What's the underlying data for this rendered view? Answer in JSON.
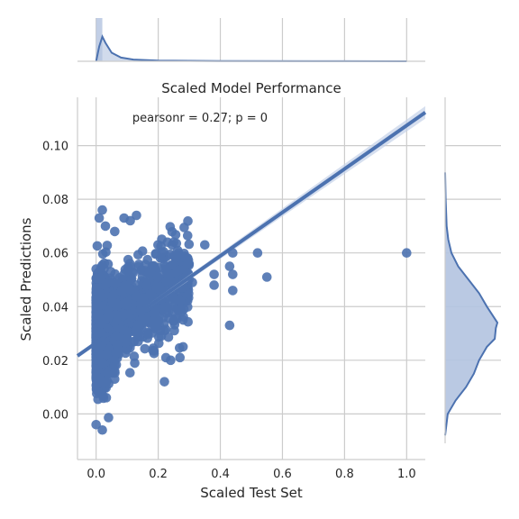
{
  "chart_data": {
    "type": "scatter",
    "title": "Scaled Model Performance",
    "xlabel": "Scaled Test Set",
    "ylabel": "Scaled Predictions",
    "annotation": "pearsonr = 0.27; p = 0",
    "xlim": [
      -0.06,
      1.06
    ],
    "ylim": [
      -0.017,
      0.118
    ],
    "x_ticks": [
      0.0,
      0.2,
      0.4,
      0.6,
      0.8,
      1.0
    ],
    "x_tick_labels": [
      "0.0",
      "0.2",
      "0.4",
      "0.6",
      "0.8",
      "1.0"
    ],
    "y_ticks": [
      0.0,
      0.02,
      0.04,
      0.06,
      0.08,
      0.1
    ],
    "y_tick_labels": [
      "0.00",
      "0.02",
      "0.04",
      "0.06",
      "0.08",
      "0.10"
    ],
    "grid": true,
    "colors": {
      "points": "#4c72b0",
      "line": "#4c72b0",
      "band": "#c5d1e8",
      "grid": "#cccccc",
      "kde_fill": "#b3c3e0"
    },
    "regression": {
      "intercept": 0.0265,
      "slope": 0.081
    },
    "outliers": [
      {
        "x": 1.0,
        "y": 0.06
      },
      {
        "x": 0.52,
        "y": 0.06
      },
      {
        "x": 0.55,
        "y": 0.051
      },
      {
        "x": 0.44,
        "y": 0.06
      },
      {
        "x": 0.43,
        "y": 0.055
      },
      {
        "x": 0.44,
        "y": 0.052
      },
      {
        "x": 0.44,
        "y": 0.046
      },
      {
        "x": 0.43,
        "y": 0.033
      },
      {
        "x": 0.38,
        "y": 0.052
      },
      {
        "x": 0.38,
        "y": 0.048
      },
      {
        "x": 0.35,
        "y": 0.063
      },
      {
        "x": 0.31,
        "y": 0.049
      },
      {
        "x": 0.27,
        "y": 0.039
      },
      {
        "x": 0.28,
        "y": 0.035
      },
      {
        "x": 0.28,
        "y": 0.025
      },
      {
        "x": 0.27,
        "y": 0.021
      },
      {
        "x": 0.23,
        "y": 0.04
      },
      {
        "x": 0.22,
        "y": 0.031
      },
      {
        "x": 0.21,
        "y": 0.029
      },
      {
        "x": 0.22,
        "y": 0.012
      },
      {
        "x": 0.24,
        "y": 0.02
      },
      {
        "x": 0.25,
        "y": 0.064
      },
      {
        "x": 0.23,
        "y": 0.064
      },
      {
        "x": 0.13,
        "y": 0.074
      },
      {
        "x": 0.11,
        "y": 0.072
      },
      {
        "x": 0.09,
        "y": 0.073
      },
      {
        "x": 0.06,
        "y": 0.068
      },
      {
        "x": 0.02,
        "y": 0.076
      },
      {
        "x": 0.01,
        "y": 0.073
      },
      {
        "x": 0.03,
        "y": 0.07
      },
      {
        "x": 0.0,
        "y": -0.004
      },
      {
        "x": 0.02,
        "y": -0.006
      }
    ],
    "top_kde": {
      "x": [
        0.0,
        0.01,
        0.02,
        0.03,
        0.05,
        0.08,
        0.12,
        0.2,
        0.4,
        0.7,
        1.0
      ],
      "density": [
        0.0,
        0.6,
        1.0,
        0.75,
        0.35,
        0.15,
        0.07,
        0.03,
        0.01,
        0.005,
        0.0
      ]
    },
    "right_kde": {
      "y": [
        -0.008,
        0.0,
        0.005,
        0.01,
        0.015,
        0.02,
        0.025,
        0.028,
        0.032,
        0.034,
        0.037,
        0.04,
        0.045,
        0.05,
        0.055,
        0.06,
        0.065,
        0.07,
        0.08,
        0.09
      ],
      "density": [
        0.0,
        0.05,
        0.2,
        0.4,
        0.55,
        0.65,
        0.8,
        0.95,
        0.97,
        1.0,
        0.9,
        0.8,
        0.65,
        0.45,
        0.25,
        0.12,
        0.06,
        0.03,
        0.01,
        0.0
      ]
    }
  }
}
